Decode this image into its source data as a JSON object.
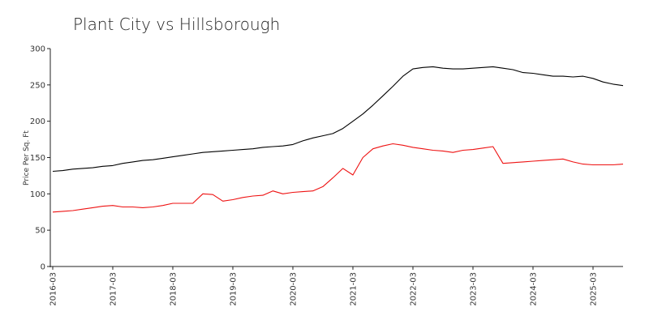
{
  "chart_data": {
    "type": "line",
    "title": "Plant City vs Hillsborough",
    "xlabel": "",
    "ylabel": "Price Per Sq. Ft",
    "ylim": [
      0,
      300
    ],
    "yticks": [
      0,
      50,
      100,
      150,
      200,
      250,
      300
    ],
    "xticks": [
      "2016-03",
      "2017-03",
      "2018-03",
      "2019-03",
      "2020-03",
      "2021-03",
      "2022-03",
      "2023-03",
      "2024-03",
      "2025-03"
    ],
    "x": [
      "2016-03",
      "2016-05",
      "2016-07",
      "2016-09",
      "2016-11",
      "2017-01",
      "2017-03",
      "2017-05",
      "2017-07",
      "2017-09",
      "2017-11",
      "2018-01",
      "2018-03",
      "2018-05",
      "2018-07",
      "2018-09",
      "2018-11",
      "2019-01",
      "2019-03",
      "2019-05",
      "2019-07",
      "2019-09",
      "2019-11",
      "2020-01",
      "2020-03",
      "2020-05",
      "2020-07",
      "2020-09",
      "2020-11",
      "2021-01",
      "2021-03",
      "2021-05",
      "2021-07",
      "2021-09",
      "2021-11",
      "2022-01",
      "2022-03",
      "2022-05",
      "2022-07",
      "2022-09",
      "2022-11",
      "2023-01",
      "2023-03",
      "2023-05",
      "2023-07",
      "2023-09",
      "2023-11",
      "2024-01",
      "2024-03",
      "2024-05",
      "2024-07",
      "2024-09",
      "2024-11",
      "2025-01",
      "2025-03",
      "2025-05",
      "2025-07",
      "2025-09"
    ],
    "series": [
      {
        "color": "#000000",
        "values": [
          131,
          132,
          134,
          135,
          136,
          138,
          139,
          142,
          144,
          146,
          147,
          149,
          151,
          153,
          155,
          157,
          158,
          159,
          160,
          161,
          162,
          164,
          165,
          166,
          168,
          173,
          177,
          180,
          183,
          190,
          200,
          210,
          222,
          235,
          248,
          262,
          272,
          274,
          275,
          273,
          272,
          272,
          273,
          274,
          275,
          273,
          271,
          267,
          266,
          264,
          262,
          262,
          261,
          262,
          259,
          254,
          251,
          249
        ]
      },
      {
        "color": "#ee1111",
        "values": [
          75,
          76,
          77,
          79,
          81,
          83,
          84,
          82,
          82,
          81,
          82,
          84,
          87,
          87,
          87,
          100,
          99,
          90,
          92,
          95,
          97,
          98,
          104,
          100,
          102,
          103,
          104,
          110,
          122,
          135,
          126,
          150,
          162,
          166,
          169,
          167,
          164,
          162,
          160,
          159,
          157,
          160,
          161,
          163,
          165,
          142,
          143,
          144,
          145,
          146,
          147,
          148,
          144,
          141,
          140,
          140,
          140,
          141
        ]
      }
    ],
    "grid": false,
    "legend": "none"
  }
}
